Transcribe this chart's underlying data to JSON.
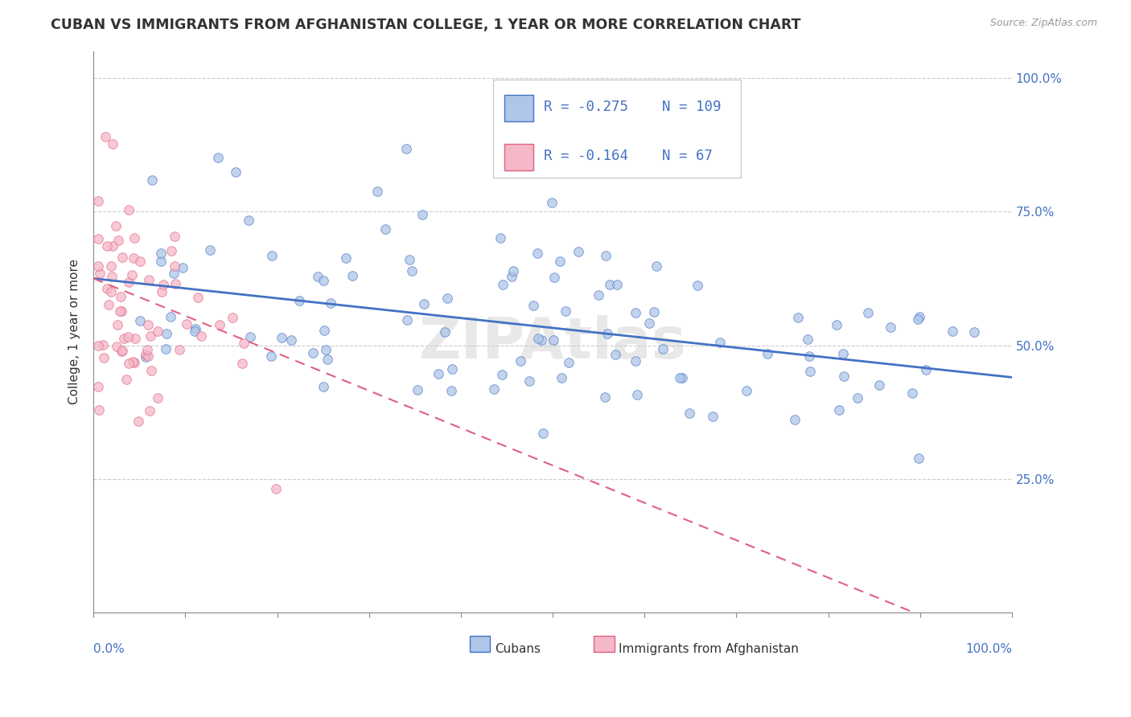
{
  "title": "CUBAN VS IMMIGRANTS FROM AFGHANISTAN COLLEGE, 1 YEAR OR MORE CORRELATION CHART",
  "source": "Source: ZipAtlas.com",
  "ylabel": "College, 1 year or more",
  "legend_label1": "Cubans",
  "legend_label2": "Immigrants from Afghanistan",
  "r1": -0.275,
  "n1": 109,
  "r2": -0.164,
  "n2": 67,
  "color_blue": "#aec6e8",
  "color_pink": "#f5b8c8",
  "edge_blue": "#4472c4",
  "edge_pink": "#e06080",
  "line_blue": "#4472c4",
  "line_pink": "#e06080",
  "watermark": "ZIPAtlas",
  "ylim": [
    0.0,
    1.05
  ],
  "xlim": [
    0.0,
    1.0
  ],
  "yticks": [
    0.0,
    0.25,
    0.5,
    0.75,
    1.0
  ],
  "ytick_labels": [
    "",
    "25.0%",
    "50.0%",
    "75.0%",
    "100.0%"
  ],
  "xticks": [
    0.0,
    0.1,
    0.2,
    0.3,
    0.4,
    0.5,
    0.6,
    0.7,
    0.8,
    0.9,
    1.0
  ]
}
